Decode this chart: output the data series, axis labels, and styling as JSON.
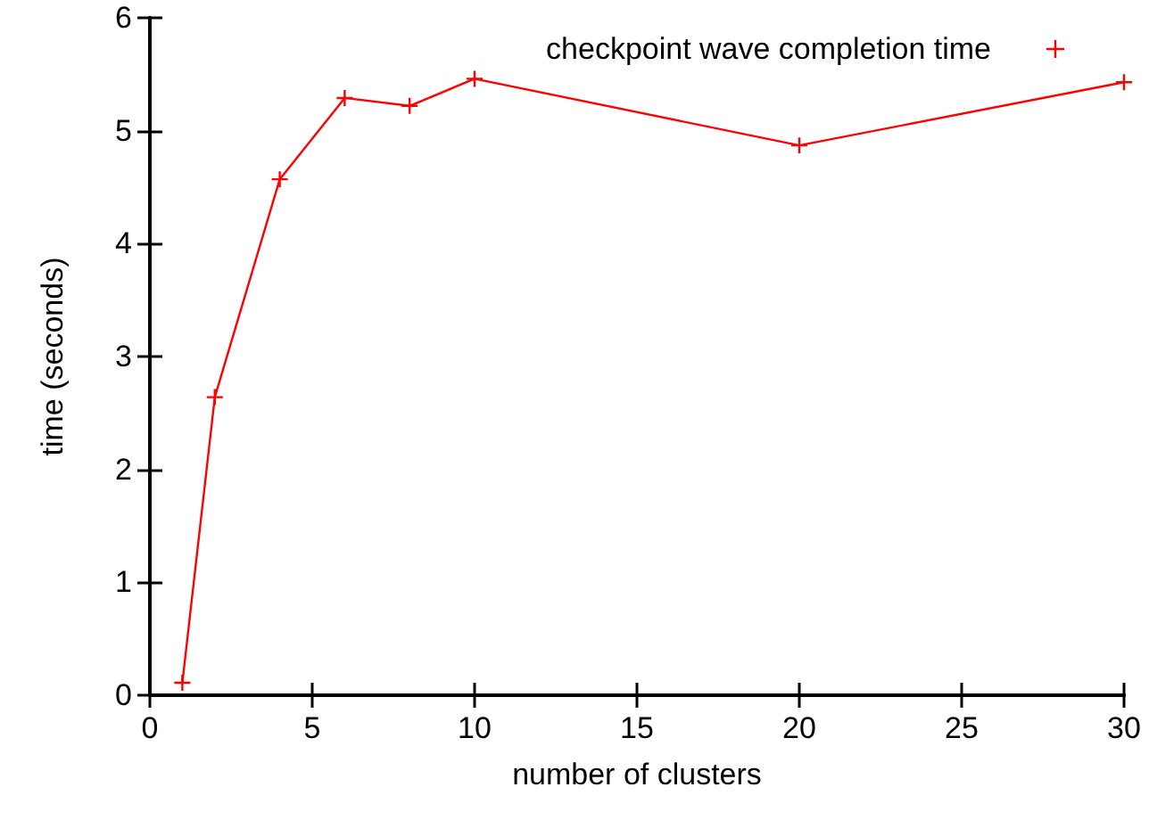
{
  "chart_data": {
    "type": "line",
    "xlabel": "number of clusters",
    "ylabel": "time (seconds)",
    "x": [
      1,
      2,
      4,
      6,
      8,
      10,
      20,
      30
    ],
    "series": [
      {
        "name": "checkpoint wave completion time",
        "color": "#ff0000",
        "values": [
          0.11,
          2.64,
          4.57,
          5.29,
          5.22,
          5.46,
          4.87,
          5.43
        ]
      }
    ],
    "xlim": [
      0,
      30
    ],
    "xticks": [
      0,
      5,
      10,
      15,
      20,
      25,
      30
    ],
    "ylim": [
      0,
      6
    ],
    "yticks": [
      0,
      1,
      2,
      3,
      4,
      5,
      6
    ],
    "grid": false,
    "legend": "top right",
    "marker": "cross",
    "line_style": "solid"
  }
}
